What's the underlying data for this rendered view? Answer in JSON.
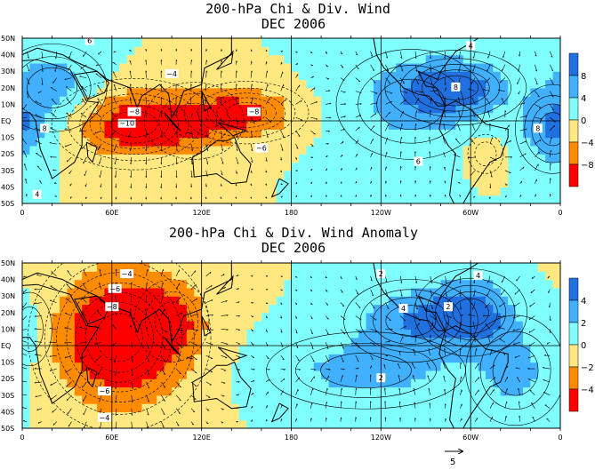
{
  "colors": {
    "neg_strong": "#ff0000",
    "neg_mid": "#ff8c00",
    "neg_weak": "#ffe880",
    "pos_weak": "#80ffff",
    "pos_mid": "#40b0ff",
    "pos_strong": "#2070e0",
    "land_outline": "#000000"
  },
  "chart_data": [
    {
      "type": "heatmap",
      "title_line1": "200-hPa Chi & Div. Wind",
      "title_line2": "DEC 2006",
      "xtick_labels": [
        "0",
        "60E",
        "120E",
        "180",
        "120W",
        "60W",
        "0"
      ],
      "ytick_labels": [
        "50N",
        "40N",
        "30N",
        "20N",
        "10N",
        "EQ",
        "10S",
        "20S",
        "30S",
        "40S",
        "50S"
      ],
      "ylim": [
        -50,
        50
      ],
      "colorbar": {
        "levels": [
          -8,
          -4,
          0,
          4,
          8
        ],
        "labels": [
          "8",
          "4",
          "0",
          "−4",
          "−8"
        ]
      },
      "centers": [
        {
          "lon": 75,
          "lat": -2,
          "sign": -1,
          "amp": 11,
          "sx": 28,
          "sy": 14
        },
        {
          "lon": 150,
          "lat": 5,
          "sign": -1,
          "amp": 9,
          "sx": 22,
          "sy": 10
        },
        {
          "lon": 115,
          "lat": 0,
          "sign": -1,
          "amp": 5,
          "sx": 20,
          "sy": 14
        },
        {
          "lon": 290,
          "lat": 20,
          "sign": 1,
          "amp": 9,
          "sx": 25,
          "sy": 12
        },
        {
          "lon": 260,
          "lat": 10,
          "sign": 1,
          "amp": 5,
          "sx": 30,
          "sy": 20
        },
        {
          "lon": 355,
          "lat": -5,
          "sign": 1,
          "amp": 8,
          "sx": 14,
          "sy": 15
        },
        {
          "lon": 20,
          "lat": 20,
          "sign": 1,
          "amp": 6,
          "sx": 22,
          "sy": 16
        },
        {
          "lon": 310,
          "lat": -20,
          "sign": -1,
          "amp": 4,
          "sx": 8,
          "sy": 8
        }
      ],
      "contour_labels": [
        {
          "lon": 45,
          "lat": 48,
          "text": "6"
        },
        {
          "lon": 70,
          "lat": -2,
          "text": "−10"
        },
        {
          "lon": 75,
          "lat": 5,
          "text": "−8"
        },
        {
          "lon": 155,
          "lat": 5,
          "text": "−8"
        },
        {
          "lon": 100,
          "lat": 28,
          "text": "−4"
        },
        {
          "lon": 160,
          "lat": -17,
          "text": "−6"
        },
        {
          "lon": 15,
          "lat": -5,
          "text": "8"
        },
        {
          "lon": 290,
          "lat": 20,
          "text": "8"
        },
        {
          "lon": 345,
          "lat": -5,
          "text": "8"
        },
        {
          "lon": 265,
          "lat": -25,
          "text": "6"
        },
        {
          "lon": 300,
          "lat": 45,
          "text": "4"
        },
        {
          "lon": 10,
          "lat": -45,
          "text": "4"
        }
      ]
    },
    {
      "type": "heatmap",
      "title_line1": "200-hPa Chi & Div. Wind Anomaly",
      "title_line2": "DEC 2006",
      "xtick_labels": [
        "0",
        "60E",
        "120E",
        "180",
        "120W",
        "60W",
        "0"
      ],
      "ytick_labels": [
        "50N",
        "40N",
        "30N",
        "20N",
        "10N",
        "EQ",
        "10S",
        "20S",
        "30S",
        "40S",
        "50S"
      ],
      "ylim": [
        -50,
        50
      ],
      "colorbar": {
        "levels": [
          -4,
          -2,
          0,
          2,
          4
        ],
        "labels": [
          "4",
          "2",
          "0",
          "−2",
          "−4"
        ]
      },
      "centers": [
        {
          "lon": 65,
          "lat": 5,
          "sign": -1,
          "amp": 7,
          "sx": 30,
          "sy": 28
        },
        {
          "lon": 100,
          "lat": 15,
          "sign": -1,
          "amp": 3,
          "sx": 15,
          "sy": 15
        },
        {
          "lon": 260,
          "lat": 15,
          "sign": 1,
          "amp": 3.5,
          "sx": 25,
          "sy": 14
        },
        {
          "lon": 300,
          "lat": 20,
          "sign": 1,
          "amp": 5,
          "sx": 20,
          "sy": 14
        },
        {
          "lon": 230,
          "lat": -15,
          "sign": 1,
          "amp": 2.8,
          "sx": 40,
          "sy": 14
        },
        {
          "lon": 330,
          "lat": -15,
          "sign": 1,
          "amp": 2.5,
          "sx": 20,
          "sy": 20
        },
        {
          "lon": 5,
          "lat": 10,
          "sign": 1,
          "amp": 1.5,
          "sx": 10,
          "sy": 15
        }
      ],
      "contour_labels": [
        {
          "lon": 70,
          "lat": 43,
          "text": "−4"
        },
        {
          "lon": 62,
          "lat": 34,
          "text": "−6"
        },
        {
          "lon": 60,
          "lat": 23,
          "text": "−8"
        },
        {
          "lon": 55,
          "lat": -28,
          "text": "−6"
        },
        {
          "lon": 55,
          "lat": -44,
          "text": "−4"
        },
        {
          "lon": 240,
          "lat": 43,
          "text": "2"
        },
        {
          "lon": 255,
          "lat": 22,
          "text": "4"
        },
        {
          "lon": 305,
          "lat": 42,
          "text": "4"
        },
        {
          "lon": 240,
          "lat": -20,
          "text": "2"
        },
        {
          "lon": 285,
          "lat": 23,
          "text": "2"
        }
      ]
    }
  ],
  "vector_reference": {
    "label": "5"
  }
}
